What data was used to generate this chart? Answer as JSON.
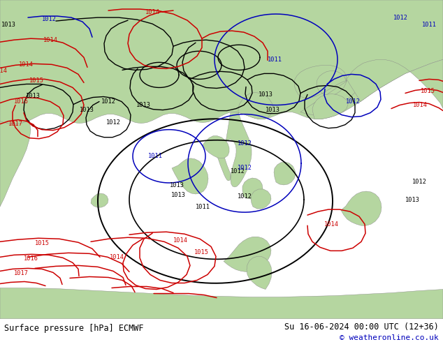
{
  "title_left": "Surface pressure [hPa] ECMWF",
  "title_right": "Su 16-06-2024 00:00 UTC (12+36)",
  "copyright": "© weatheronline.co.uk",
  "land_color": "#b5d6a0",
  "sea_color": "#c8c8c8",
  "fig_width": 6.34,
  "fig_height": 4.9,
  "dpi": 100,
  "bottom_bar_color": "#ffffff",
  "bottom_bar_height": 0.068,
  "title_fontsize": 8.5,
  "label_fontsize": 6.2,
  "black_color": "#000000",
  "red_color": "#cc0000",
  "blue_color": "#0000bb",
  "gray_color": "#999999",
  "text_color": "#000000",
  "blue_text_color": "#0000bb"
}
